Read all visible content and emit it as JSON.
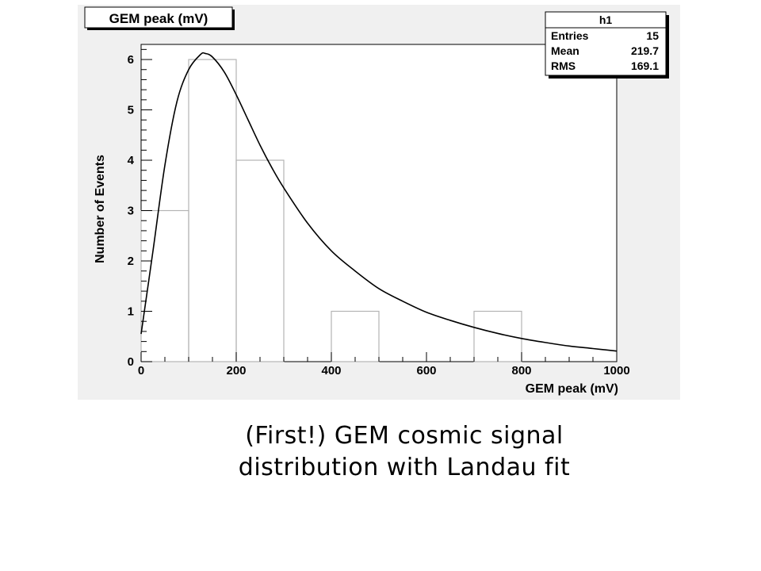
{
  "chart_data": {
    "type": "bar",
    "title": "GEM peak (mV)",
    "xlabel": "GEM peak (mV)",
    "ylabel": "Number of Events",
    "xlim": [
      0,
      1000
    ],
    "ylim": [
      0,
      6.3
    ],
    "x_ticks": [
      "0",
      "200",
      "400",
      "600",
      "800",
      "1000"
    ],
    "y_ticks": [
      "0",
      "1",
      "2",
      "3",
      "4",
      "5",
      "6"
    ],
    "bins": [
      {
        "low": 0,
        "high": 100,
        "count": 3
      },
      {
        "low": 100,
        "high": 200,
        "count": 6
      },
      {
        "low": 200,
        "high": 300,
        "count": 4
      },
      {
        "low": 300,
        "high": 400,
        "count": 0
      },
      {
        "low": 400,
        "high": 500,
        "count": 1
      },
      {
        "low": 500,
        "high": 600,
        "count": 0
      },
      {
        "low": 600,
        "high": 700,
        "count": 0
      },
      {
        "low": 700,
        "high": 800,
        "count": 1
      },
      {
        "low": 800,
        "high": 900,
        "count": 0
      },
      {
        "low": 900,
        "high": 1000,
        "count": 0
      }
    ],
    "fit": {
      "function": "Landau",
      "points": [
        [
          0,
          0.55
        ],
        [
          25,
          2.2
        ],
        [
          50,
          3.9
        ],
        [
          75,
          5.15
        ],
        [
          100,
          5.8
        ],
        [
          125,
          6.1
        ],
        [
          135,
          6.12
        ],
        [
          150,
          6.05
        ],
        [
          175,
          5.75
        ],
        [
          200,
          5.3
        ],
        [
          225,
          4.8
        ],
        [
          250,
          4.3
        ],
        [
          275,
          3.85
        ],
        [
          300,
          3.45
        ],
        [
          350,
          2.75
        ],
        [
          400,
          2.2
        ],
        [
          450,
          1.8
        ],
        [
          500,
          1.45
        ],
        [
          550,
          1.2
        ],
        [
          600,
          0.98
        ],
        [
          650,
          0.82
        ],
        [
          700,
          0.68
        ],
        [
          750,
          0.56
        ],
        [
          800,
          0.46
        ],
        [
          850,
          0.38
        ],
        [
          900,
          0.31
        ],
        [
          950,
          0.26
        ],
        [
          1000,
          0.21
        ]
      ]
    },
    "stats_box": {
      "name": "h1",
      "rows": [
        {
          "label": "Entries",
          "value": "15"
        },
        {
          "label": "Mean",
          "value": "219.7"
        },
        {
          "label": "RMS",
          "value": "169.1"
        }
      ]
    },
    "legend": "top-right"
  },
  "caption": {
    "line1": "(First!) GEM cosmic signal",
    "line2": "distribution with Landau fit"
  }
}
